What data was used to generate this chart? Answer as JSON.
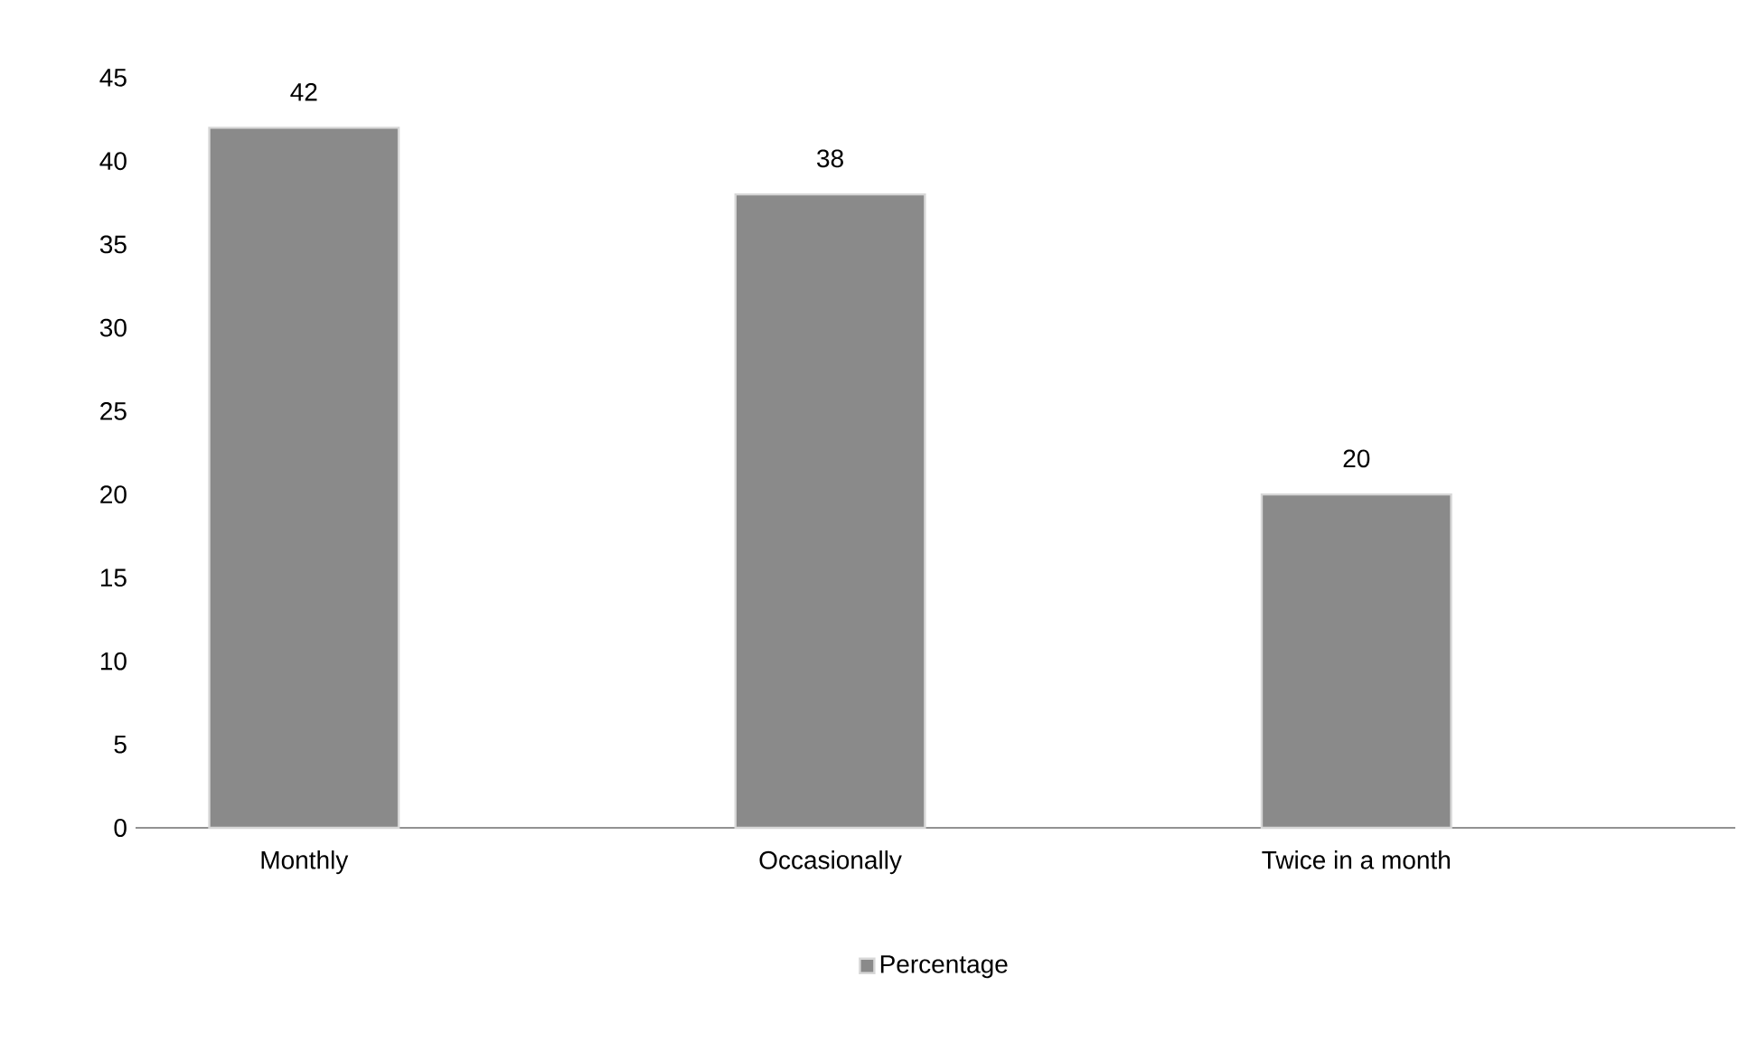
{
  "chart_data": {
    "type": "bar",
    "categories": [
      "Monthly",
      "Occasionally",
      "Twice in a month"
    ],
    "series": [
      {
        "name": "Percentage",
        "color": "#8a8a8a",
        "values": [
          42,
          38,
          20
        ]
      }
    ],
    "ylim": [
      0,
      45
    ],
    "yticks": [
      0,
      5,
      10,
      15,
      20,
      25,
      30,
      35,
      40,
      45
    ],
    "data_labels": true,
    "legend": "bottom",
    "grid": false
  }
}
